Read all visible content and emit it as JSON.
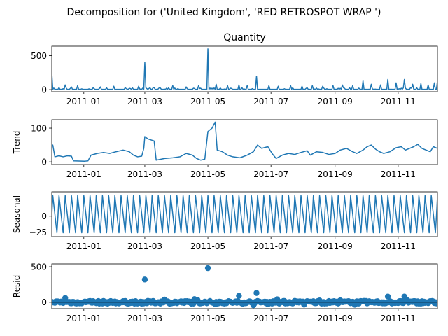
{
  "suptitle": "Decomposition for ('United Kingdom', 'RED RETROSPOT WRAP ')",
  "colors": {
    "series": "#1f77b4"
  },
  "x_ticks": [
    "2011-01",
    "2011-03",
    "2011-05",
    "2011-07",
    "2011-09",
    "2011-11"
  ],
  "x_tick_dates": [
    "2011-01-01",
    "2011-03-01",
    "2011-05-01",
    "2011-07-01",
    "2011-09-01",
    "2011-11-01"
  ],
  "x_range": [
    "2010-12-01",
    "2011-12-09"
  ],
  "chart_data": [
    {
      "type": "line",
      "title": "Quantity",
      "ylabel": "",
      "ylim": [
        -30,
        640
      ],
      "yticks": [
        0,
        500
      ],
      "yticklabels": [
        "0",
        "500"
      ],
      "baseline": 5,
      "spikes": [
        {
          "date": "2010-12-01",
          "value": 250
        },
        {
          "date": "2010-12-08",
          "value": 30
        },
        {
          "date": "2010-12-14",
          "value": 70
        },
        {
          "date": "2010-12-20",
          "value": 40
        },
        {
          "date": "2010-12-26",
          "value": 60
        },
        {
          "date": "2011-01-17",
          "value": 40
        },
        {
          "date": "2011-01-30",
          "value": 50
        },
        {
          "date": "2011-02-10",
          "value": 30
        },
        {
          "date": "2011-02-23",
          "value": 50
        },
        {
          "date": "2011-03-01",
          "value": 400
        },
        {
          "date": "2011-03-15",
          "value": 30
        },
        {
          "date": "2011-03-28",
          "value": 60
        },
        {
          "date": "2011-04-10",
          "value": 40
        },
        {
          "date": "2011-04-22",
          "value": 60
        },
        {
          "date": "2011-05-01",
          "value": 600
        },
        {
          "date": "2011-05-09",
          "value": 80
        },
        {
          "date": "2011-05-20",
          "value": 60
        },
        {
          "date": "2011-05-31",
          "value": 70
        },
        {
          "date": "2011-06-08",
          "value": 60
        },
        {
          "date": "2011-06-17",
          "value": 200
        },
        {
          "date": "2011-06-29",
          "value": 60
        },
        {
          "date": "2011-07-08",
          "value": 50
        },
        {
          "date": "2011-07-20",
          "value": 60
        },
        {
          "date": "2011-07-31",
          "value": 50
        },
        {
          "date": "2011-08-10",
          "value": 60
        },
        {
          "date": "2011-08-20",
          "value": 50
        },
        {
          "date": "2011-08-30",
          "value": 60
        },
        {
          "date": "2011-09-08",
          "value": 70
        },
        {
          "date": "2011-09-18",
          "value": 60
        },
        {
          "date": "2011-09-28",
          "value": 130
        },
        {
          "date": "2011-10-06",
          "value": 80
        },
        {
          "date": "2011-10-15",
          "value": 70
        },
        {
          "date": "2011-10-22",
          "value": 150
        },
        {
          "date": "2011-10-30",
          "value": 100
        },
        {
          "date": "2011-11-07",
          "value": 150
        },
        {
          "date": "2011-11-15",
          "value": 80
        },
        {
          "date": "2011-11-23",
          "value": 90
        },
        {
          "date": "2011-11-30",
          "value": 70
        },
        {
          "date": "2011-12-06",
          "value": 100
        },
        {
          "date": "2011-12-09",
          "value": 130
        }
      ]
    },
    {
      "type": "line",
      "title": "",
      "ylabel": "Trend",
      "ylim": [
        -8,
        125
      ],
      "yticks": [
        0,
        100
      ],
      "yticklabels": [
        "0",
        "100"
      ],
      "points": [
        [
          "2010-12-01",
          45
        ],
        [
          "2010-12-02",
          50
        ],
        [
          "2010-12-04",
          15
        ],
        [
          "2010-12-08",
          18
        ],
        [
          "2010-12-12",
          15
        ],
        [
          "2010-12-16",
          18
        ],
        [
          "2010-12-20",
          17
        ],
        [
          "2010-12-22",
          3
        ],
        [
          "2011-01-02",
          2
        ],
        [
          "2011-01-05",
          3
        ],
        [
          "2011-01-08",
          20
        ],
        [
          "2011-01-14",
          25
        ],
        [
          "2011-01-20",
          28
        ],
        [
          "2011-01-26",
          25
        ],
        [
          "2011-02-01",
          30
        ],
        [
          "2011-02-08",
          35
        ],
        [
          "2011-02-14",
          30
        ],
        [
          "2011-02-18",
          20
        ],
        [
          "2011-02-22",
          15
        ],
        [
          "2011-02-26",
          17
        ],
        [
          "2011-02-28",
          40
        ],
        [
          "2011-03-01",
          75
        ],
        [
          "2011-03-04",
          68
        ],
        [
          "2011-03-10",
          62
        ],
        [
          "2011-03-12",
          5
        ],
        [
          "2011-03-20",
          10
        ],
        [
          "2011-03-28",
          12
        ],
        [
          "2011-04-04",
          15
        ],
        [
          "2011-04-10",
          25
        ],
        [
          "2011-04-16",
          20
        ],
        [
          "2011-04-20",
          10
        ],
        [
          "2011-04-24",
          5
        ],
        [
          "2011-04-28",
          8
        ],
        [
          "2011-05-01",
          90
        ],
        [
          "2011-05-05",
          100
        ],
        [
          "2011-05-08",
          118
        ],
        [
          "2011-05-10",
          35
        ],
        [
          "2011-05-15",
          30
        ],
        [
          "2011-05-20",
          20
        ],
        [
          "2011-05-25",
          15
        ],
        [
          "2011-06-01",
          12
        ],
        [
          "2011-06-08",
          20
        ],
        [
          "2011-06-14",
          30
        ],
        [
          "2011-06-18",
          50
        ],
        [
          "2011-06-22",
          40
        ],
        [
          "2011-06-28",
          45
        ],
        [
          "2011-07-02",
          25
        ],
        [
          "2011-07-06",
          10
        ],
        [
          "2011-07-12",
          20
        ],
        [
          "2011-07-18",
          25
        ],
        [
          "2011-07-24",
          22
        ],
        [
          "2011-07-30",
          28
        ],
        [
          "2011-08-05",
          33
        ],
        [
          "2011-08-08",
          20
        ],
        [
          "2011-08-14",
          30
        ],
        [
          "2011-08-20",
          28
        ],
        [
          "2011-08-26",
          22
        ],
        [
          "2011-09-01",
          25
        ],
        [
          "2011-09-06",
          35
        ],
        [
          "2011-09-12",
          40
        ],
        [
          "2011-09-18",
          30
        ],
        [
          "2011-09-22",
          25
        ],
        [
          "2011-09-28",
          35
        ],
        [
          "2011-10-02",
          45
        ],
        [
          "2011-10-06",
          50
        ],
        [
          "2011-10-10",
          38
        ],
        [
          "2011-10-14",
          30
        ],
        [
          "2011-10-18",
          25
        ],
        [
          "2011-10-24",
          30
        ],
        [
          "2011-10-30",
          42
        ],
        [
          "2011-11-04",
          45
        ],
        [
          "2011-11-08",
          35
        ],
        [
          "2011-11-12",
          40
        ],
        [
          "2011-11-16",
          45
        ],
        [
          "2011-11-20",
          52
        ],
        [
          "2011-11-24",
          40
        ],
        [
          "2011-11-28",
          35
        ],
        [
          "2011-12-02",
          30
        ],
        [
          "2011-12-05",
          45
        ],
        [
          "2011-12-09",
          40
        ]
      ]
    },
    {
      "type": "line",
      "title": "",
      "ylabel": "Seasonal",
      "ylim": [
        -32,
        38
      ],
      "yticks": [
        -25,
        0
      ],
      "yticklabels": [
        "−25",
        "0"
      ],
      "period_days": 6,
      "peak": 32,
      "trough": -26
    },
    {
      "type": "scatter",
      "title": "",
      "ylabel": "Resid",
      "ylim": [
        -90,
        540
      ],
      "yticks": [
        0,
        500
      ],
      "yticklabels": [
        "0",
        "500"
      ],
      "zero_line": true,
      "outliers": [
        {
          "date": "2011-03-01",
          "value": 320
        },
        {
          "date": "2011-05-01",
          "value": 480
        },
        {
          "date": "2011-05-31",
          "value": 90
        },
        {
          "date": "2011-06-17",
          "value": 130
        },
        {
          "date": "2010-12-14",
          "value": 60
        },
        {
          "date": "2011-10-22",
          "value": 80
        },
        {
          "date": "2011-11-07",
          "value": 80
        }
      ]
    }
  ]
}
